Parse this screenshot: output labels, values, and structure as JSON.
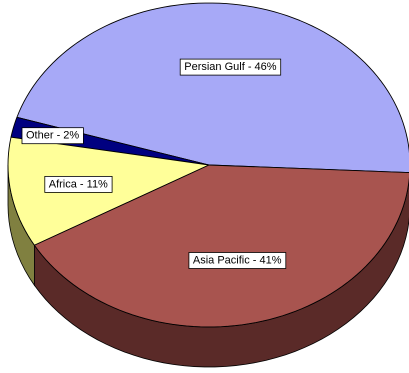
{
  "chart_data": {
    "type": "pie",
    "style": "3d",
    "title": "",
    "legend": "none",
    "slices": [
      {
        "label": "Persian Gulf",
        "value": 46,
        "data_label": "Persian Gulf - 46%",
        "color": "#A7A9F7",
        "side_color": "#6E70A8"
      },
      {
        "label": "Other",
        "value": 2,
        "data_label": "Other - 2%",
        "color": "#000080",
        "side_color": "#00004A"
      },
      {
        "label": "Africa",
        "value": 11,
        "data_label": "Africa - 11%",
        "color": "#FFFF99",
        "side_color": "#808040"
      },
      {
        "label": "Asia Pacific",
        "value": 41,
        "data_label": "Asia Pacific - 41%",
        "color": "#A8544F",
        "side_color": "#5A2A28"
      }
    ]
  }
}
